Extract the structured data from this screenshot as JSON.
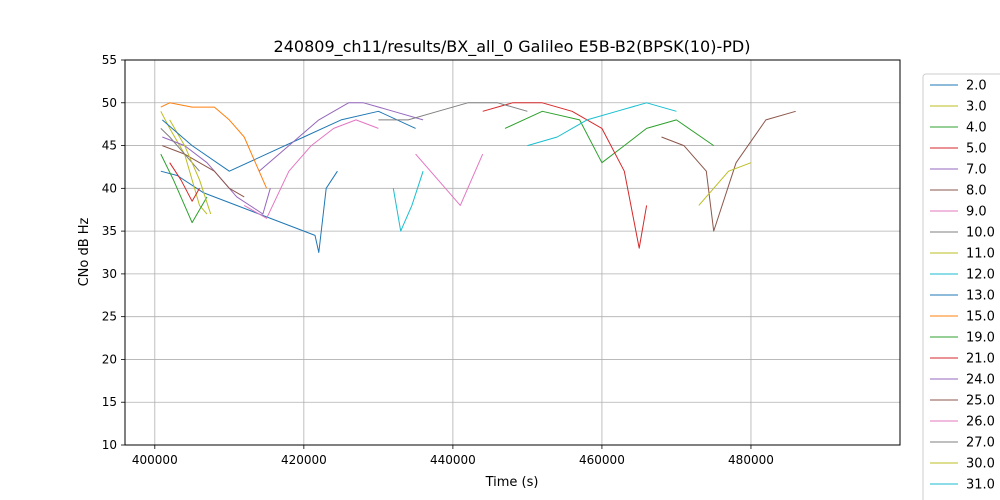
{
  "chart_data": {
    "type": "line",
    "title": "240809_ch11/results/BX_all_0 Galileo E5B-B2(BPSK(10)-PD)",
    "xlabel": "Time (s)",
    "ylabel": "CNo dB Hz",
    "xlim": [
      396000,
      500000
    ],
    "ylim": [
      10,
      55
    ],
    "xticks": [
      400000,
      420000,
      440000,
      460000,
      480000
    ],
    "xtick_labels": [
      "400000",
      "420000",
      "440000",
      "460000",
      "480000"
    ],
    "yticks": [
      10,
      15,
      20,
      25,
      30,
      35,
      40,
      45,
      50,
      55
    ],
    "ytick_labels": [
      "10",
      "15",
      "20",
      "25",
      "30",
      "35",
      "40",
      "45",
      "50",
      "55"
    ],
    "grid": true,
    "legend_position": "right, outside plot",
    "series": [
      {
        "name": "2.0",
        "color": "#1f77b4",
        "x": [
          400800,
          403000,
          406500,
          421500,
          422000,
          423000,
          424500
        ],
        "y": [
          42,
          41.5,
          39.5,
          34.5,
          32.5,
          40,
          42
        ]
      },
      {
        "name": "3.0",
        "color": "#bcbd22",
        "x": [
          400800,
          402000,
          404000,
          406000,
          407000
        ],
        "y": [
          49,
          47,
          44,
          38,
          37
        ]
      },
      {
        "name": "4.0",
        "color": "#2ca02c",
        "x": [
          400800,
          402500,
          405000,
          407000
        ],
        "y": [
          44,
          41,
          36,
          39
        ]
      },
      {
        "name": "5.0",
        "color": "#d62728",
        "x": [
          402000,
          403500,
          405000,
          406000
        ],
        "y": [
          43,
          41,
          38.5,
          40
        ]
      },
      {
        "name": "7.0",
        "color": "#9467bd",
        "x": [
          401000,
          404000,
          407000,
          409000,
          411000,
          414500,
          415500
        ],
        "y": [
          46,
          45,
          43,
          41,
          39,
          37,
          40
        ]
      },
      {
        "name": "8.0",
        "color": "#8c564b",
        "x": [
          401000,
          404000,
          406000,
          408000,
          410000,
          412000
        ],
        "y": [
          45,
          44,
          43,
          42,
          40,
          39
        ]
      },
      {
        "name": "9.0",
        "color": "#e377c2",
        "x": [
          412000,
          415000,
          418000,
          421000,
          424000,
          427000,
          430000
        ],
        "y": [
          38,
          36.5,
          42,
          45,
          47,
          48,
          47
        ]
      },
      {
        "name": "10.0",
        "color": "#7f7f7f",
        "x": [
          400800,
          402000,
          404000,
          406000
        ],
        "y": [
          47,
          46,
          44,
          42
        ]
      },
      {
        "name": "11.0",
        "color": "#bcbd22",
        "x": [
          402000,
          404000,
          406000,
          407500
        ],
        "y": [
          48,
          45,
          41,
          37
        ]
      },
      {
        "name": "12.0",
        "color": "#17becf",
        "x": [
          432000,
          433000,
          434500,
          436000
        ],
        "y": [
          40,
          35,
          38,
          42
        ]
      },
      {
        "name": "13.0",
        "color": "#1f77b4",
        "x": [
          401000,
          405000,
          410000,
          415000,
          420000,
          425000,
          430000,
          435000
        ],
        "y": [
          48,
          45,
          42,
          44,
          46,
          48,
          49,
          47
        ]
      },
      {
        "name": "15.0",
        "color": "#ff7f0e",
        "x": [
          400800,
          402000,
          405000,
          408000,
          410000,
          412000,
          413500,
          415000
        ],
        "y": [
          49.5,
          50,
          49.5,
          49.5,
          48,
          46,
          43,
          40
        ]
      },
      {
        "name": "19.0",
        "color": "#2ca02c",
        "x": [
          447000,
          452000,
          457000,
          460000,
          463000,
          466000,
          470000,
          475000
        ],
        "y": [
          47,
          49,
          48,
          43,
          45,
          47,
          48,
          45
        ]
      },
      {
        "name": "21.0",
        "color": "#d62728",
        "x": [
          444000,
          448000,
          452000,
          456000,
          460000,
          463000,
          465000,
          466000
        ],
        "y": [
          49,
          50,
          50,
          49,
          47,
          42,
          33,
          38
        ]
      },
      {
        "name": "24.0",
        "color": "#9467bd",
        "x": [
          414000,
          418000,
          422000,
          426000,
          428000,
          432000,
          436000
        ],
        "y": [
          42,
          45,
          48,
          50,
          50,
          49,
          48
        ]
      },
      {
        "name": "25.0",
        "color": "#8c564b",
        "x": [
          468000,
          471000,
          474000,
          475000,
          478000,
          482000,
          486000
        ],
        "y": [
          46,
          45,
          42,
          35,
          43,
          48,
          49
        ]
      },
      {
        "name": "26.0",
        "color": "#e377c2",
        "x": [
          435000,
          437000,
          439000,
          441000,
          444000
        ],
        "y": [
          44,
          42,
          40,
          38,
          44
        ]
      },
      {
        "name": "27.0",
        "color": "#7f7f7f",
        "x": [
          430000,
          434000,
          438000,
          442000,
          446000,
          450000
        ],
        "y": [
          48,
          48,
          49,
          50,
          50,
          49
        ]
      },
      {
        "name": "30.0",
        "color": "#bcbd22",
        "x": [
          473000,
          475000,
          477000,
          480000
        ],
        "y": [
          38,
          40,
          42,
          43
        ]
      },
      {
        "name": "31.0",
        "color": "#17becf",
        "x": [
          450000,
          454000,
          458000,
          462000,
          466000,
          470000
        ],
        "y": [
          45,
          46,
          48,
          49,
          50,
          49
        ]
      }
    ]
  }
}
